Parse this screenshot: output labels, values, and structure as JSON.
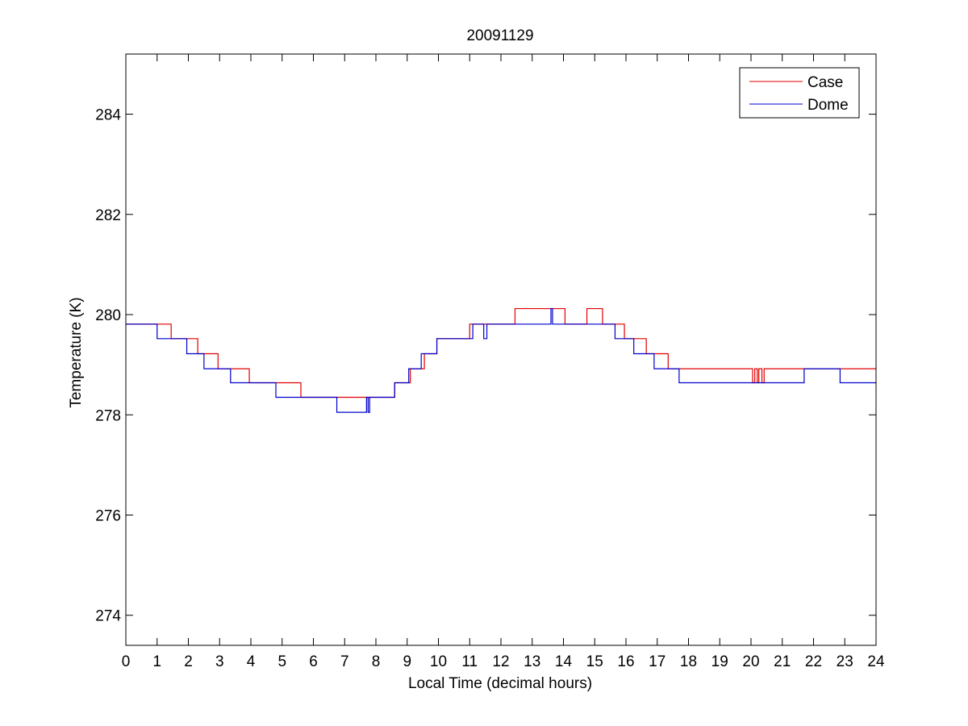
{
  "chart_data": {
    "type": "line",
    "title": "20091129",
    "xlabel": "Local Time (decimal hours)",
    "ylabel": "Temperature (K)",
    "xlim": [
      0,
      24
    ],
    "ylim": [
      273.4,
      285.2
    ],
    "xticks": [
      0,
      1,
      2,
      3,
      4,
      5,
      6,
      7,
      8,
      9,
      10,
      11,
      12,
      13,
      14,
      15,
      16,
      17,
      18,
      19,
      20,
      21,
      22,
      23,
      24
    ],
    "yticks": [
      274,
      276,
      278,
      280,
      282,
      284
    ],
    "grid": false,
    "legend_position": "top-right",
    "series": [
      {
        "name": "Case",
        "color": "#e00000",
        "points": [
          [
            0,
            279.81
          ],
          [
            1.45,
            279.81
          ],
          [
            1.45,
            279.52
          ],
          [
            2.3,
            279.52
          ],
          [
            2.3,
            279.22
          ],
          [
            2.95,
            279.22
          ],
          [
            2.95,
            278.92
          ],
          [
            3.95,
            278.92
          ],
          [
            3.95,
            278.64
          ],
          [
            5.6,
            278.64
          ],
          [
            5.6,
            278.35
          ],
          [
            8.6,
            278.35
          ],
          [
            8.6,
            278.64
          ],
          [
            9.1,
            278.64
          ],
          [
            9.1,
            278.92
          ],
          [
            9.55,
            278.92
          ],
          [
            9.55,
            279.22
          ],
          [
            9.95,
            279.22
          ],
          [
            9.95,
            279.52
          ],
          [
            11.0,
            279.52
          ],
          [
            11.0,
            279.81
          ],
          [
            12.45,
            279.81
          ],
          [
            12.45,
            280.12
          ],
          [
            14.05,
            280.12
          ],
          [
            14.05,
            279.81
          ],
          [
            14.75,
            279.81
          ],
          [
            14.75,
            280.12
          ],
          [
            15.25,
            280.12
          ],
          [
            15.25,
            279.81
          ],
          [
            15.95,
            279.81
          ],
          [
            15.95,
            279.52
          ],
          [
            16.65,
            279.52
          ],
          [
            16.65,
            279.22
          ],
          [
            17.35,
            279.22
          ],
          [
            17.35,
            278.92
          ],
          [
            20.05,
            278.92
          ],
          [
            20.05,
            278.64
          ],
          [
            20.12,
            278.64
          ],
          [
            20.12,
            278.92
          ],
          [
            20.2,
            278.92
          ],
          [
            20.2,
            278.64
          ],
          [
            20.25,
            278.64
          ],
          [
            20.25,
            278.92
          ],
          [
            20.35,
            278.92
          ],
          [
            20.35,
            278.64
          ],
          [
            20.42,
            278.64
          ],
          [
            20.42,
            278.92
          ],
          [
            24,
            278.92
          ]
        ]
      },
      {
        "name": "Dome",
        "color": "#0000cc",
        "points": [
          [
            0,
            279.81
          ],
          [
            1.0,
            279.81
          ],
          [
            1.0,
            279.52
          ],
          [
            1.95,
            279.52
          ],
          [
            1.95,
            279.22
          ],
          [
            2.5,
            279.22
          ],
          [
            2.5,
            278.92
          ],
          [
            3.35,
            278.92
          ],
          [
            3.35,
            278.64
          ],
          [
            4.8,
            278.64
          ],
          [
            4.8,
            278.35
          ],
          [
            6.75,
            278.35
          ],
          [
            6.75,
            278.05
          ],
          [
            7.7,
            278.05
          ],
          [
            7.7,
            278.35
          ],
          [
            7.75,
            278.35
          ],
          [
            7.75,
            278.05
          ],
          [
            7.8,
            278.05
          ],
          [
            7.8,
            278.35
          ],
          [
            8.6,
            278.35
          ],
          [
            8.6,
            278.64
          ],
          [
            9.05,
            278.64
          ],
          [
            9.05,
            278.92
          ],
          [
            9.45,
            278.92
          ],
          [
            9.45,
            279.22
          ],
          [
            9.95,
            279.22
          ],
          [
            9.95,
            279.52
          ],
          [
            11.1,
            279.52
          ],
          [
            11.1,
            279.81
          ],
          [
            11.45,
            279.81
          ],
          [
            11.45,
            279.52
          ],
          [
            11.55,
            279.52
          ],
          [
            11.55,
            279.81
          ],
          [
            13.6,
            279.81
          ],
          [
            13.6,
            280.12
          ],
          [
            13.65,
            280.12
          ],
          [
            13.65,
            279.81
          ],
          [
            15.65,
            279.81
          ],
          [
            15.65,
            279.52
          ],
          [
            16.25,
            279.52
          ],
          [
            16.25,
            279.22
          ],
          [
            16.9,
            279.22
          ],
          [
            16.9,
            278.92
          ],
          [
            17.7,
            278.92
          ],
          [
            17.7,
            278.64
          ],
          [
            21.7,
            278.64
          ],
          [
            21.7,
            278.92
          ],
          [
            22.85,
            278.92
          ],
          [
            22.85,
            278.64
          ],
          [
            24,
            278.64
          ]
        ]
      }
    ]
  }
}
